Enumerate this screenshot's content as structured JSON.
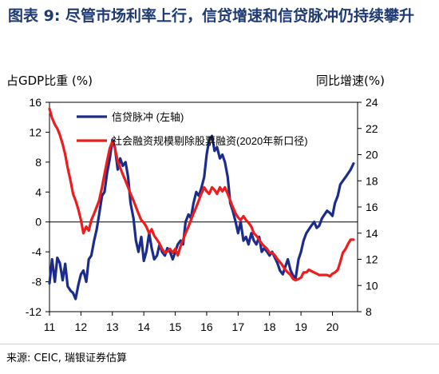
{
  "title": "图表 9: 尽管市场利率上行，信贷增速和信贷脉冲仍持续攀升",
  "source": "来源: CEIC, 瑞银证券估算",
  "chart_data": {
    "type": "line",
    "left_axis_label": "占GDP比重 (%)",
    "right_axis_label": "同比增速(%)",
    "x_ticks": [
      "11",
      "12",
      "13",
      "14",
      "15",
      "16",
      "17",
      "18",
      "19",
      "20"
    ],
    "xlim": [
      2011.0,
      2020.8
    ],
    "y_left": {
      "ylim": [
        -12,
        16
      ],
      "ticks": [
        "16",
        "12",
        "8",
        "4",
        "0",
        "-4",
        "-8",
        "-12"
      ],
      "values": [
        16,
        12,
        8,
        4,
        0,
        -4,
        -8,
        -12
      ]
    },
    "y_right": {
      "ylim": [
        8,
        24
      ],
      "ticks": [
        "24",
        "22",
        "20",
        "18",
        "16",
        "14",
        "12",
        "10",
        "8"
      ],
      "values": [
        24,
        22,
        20,
        18,
        16,
        14,
        12,
        10,
        8
      ]
    },
    "legend_location": "top-left",
    "series": [
      {
        "name": "信贷脉冲 (左轴)",
        "axis": "left",
        "color": "#1c2c8c",
        "x": [
          2011.0,
          2011.08,
          2011.17,
          2011.25,
          2011.33,
          2011.42,
          2011.5,
          2011.58,
          2011.67,
          2011.75,
          2011.83,
          2011.92,
          2012.0,
          2012.08,
          2012.17,
          2012.25,
          2012.33,
          2012.42,
          2012.5,
          2012.58,
          2012.67,
          2012.75,
          2012.83,
          2012.92,
          2013.0,
          2013.08,
          2013.17,
          2013.25,
          2013.33,
          2013.42,
          2013.5,
          2013.58,
          2013.67,
          2013.75,
          2013.83,
          2013.92,
          2014.0,
          2014.08,
          2014.17,
          2014.25,
          2014.33,
          2014.42,
          2014.5,
          2014.58,
          2014.67,
          2014.75,
          2014.83,
          2014.92,
          2015.0,
          2015.08,
          2015.17,
          2015.25,
          2015.33,
          2015.42,
          2015.5,
          2015.58,
          2015.67,
          2015.75,
          2015.83,
          2015.92,
          2016.0,
          2016.08,
          2016.17,
          2016.25,
          2016.33,
          2016.42,
          2016.5,
          2016.58,
          2016.67,
          2016.75,
          2016.83,
          2016.92,
          2017.0,
          2017.08,
          2017.17,
          2017.25,
          2017.33,
          2017.42,
          2017.5,
          2017.58,
          2017.67,
          2017.75,
          2017.83,
          2017.92,
          2018.0,
          2018.08,
          2018.17,
          2018.25,
          2018.33,
          2018.42,
          2018.5,
          2018.58,
          2018.67,
          2018.75,
          2018.83,
          2018.92,
          2019.0,
          2019.08,
          2019.17,
          2019.25,
          2019.33,
          2019.42,
          2019.5,
          2019.58,
          2019.67,
          2019.75,
          2019.83,
          2019.92,
          2020.0,
          2020.08,
          2020.17,
          2020.25,
          2020.33,
          2020.42,
          2020.5,
          2020.58,
          2020.67
        ],
        "values": [
          -8.2,
          -5.0,
          -8.0,
          -4.8,
          -5.5,
          -7.8,
          -5.6,
          -8.6,
          -9.2,
          -9.5,
          -10.3,
          -8.4,
          -7.0,
          -6.5,
          -8.0,
          -5.0,
          -4.5,
          -2.5,
          -1.0,
          1.0,
          3.5,
          4.0,
          6.5,
          8.5,
          11.0,
          10.0,
          7.0,
          8.5,
          7.5,
          8.0,
          6.0,
          2.5,
          0.5,
          -2.5,
          -4.0,
          -2.0,
          -5.2,
          -4.0,
          -1.5,
          -3.5,
          -5.0,
          -4.5,
          -3.0,
          -4.0,
          -4.5,
          -3.5,
          -4.0,
          -5.0,
          -4.0,
          -3.0,
          -2.5,
          -3.0,
          0.0,
          1.0,
          0.5,
          2.5,
          4.0,
          3.5,
          4.5,
          6.0,
          9.0,
          11.0,
          11.5,
          9.5,
          10.0,
          8.5,
          9.0,
          8.0,
          6.0,
          2.5,
          1.5,
          0.0,
          -1.5,
          0.0,
          -2.5,
          -2.0,
          -3.0,
          -1.5,
          -2.5,
          -3.0,
          -2.0,
          -4.0,
          -3.5,
          -4.0,
          -4.5,
          -4.0,
          -4.8,
          -5.5,
          -6.5,
          -7.0,
          -6.0,
          -5.0,
          -6.5,
          -7.2,
          -7.5,
          -5.0,
          -4.0,
          -2.5,
          -1.5,
          -1.0,
          -0.5,
          0.0,
          -0.8,
          -0.5,
          0.5,
          1.0,
          1.5,
          1.2,
          0.8,
          2.5,
          3.5,
          5.0,
          5.5,
          6.0,
          6.5,
          7.0,
          7.8
        ]
      },
      {
        "name": "社会融资规模剔除股票融资(2020年新口径)",
        "axis": "right",
        "color": "#ee1c1c",
        "x": [
          2011.0,
          2011.08,
          2011.17,
          2011.25,
          2011.33,
          2011.42,
          2011.5,
          2011.58,
          2011.67,
          2011.75,
          2011.83,
          2011.92,
          2012.0,
          2012.08,
          2012.17,
          2012.25,
          2012.33,
          2012.42,
          2012.5,
          2012.58,
          2012.67,
          2012.75,
          2012.83,
          2012.92,
          2013.0,
          2013.08,
          2013.17,
          2013.25,
          2013.33,
          2013.42,
          2013.5,
          2013.58,
          2013.67,
          2013.75,
          2013.83,
          2013.92,
          2014.0,
          2014.08,
          2014.17,
          2014.25,
          2014.33,
          2014.42,
          2014.5,
          2014.58,
          2014.67,
          2014.75,
          2014.83,
          2014.92,
          2015.0,
          2015.08,
          2015.17,
          2015.25,
          2015.33,
          2015.42,
          2015.5,
          2015.58,
          2015.67,
          2015.75,
          2015.83,
          2015.92,
          2016.0,
          2016.08,
          2016.17,
          2016.25,
          2016.33,
          2016.42,
          2016.5,
          2016.58,
          2016.67,
          2016.75,
          2016.83,
          2016.92,
          2017.0,
          2017.08,
          2017.17,
          2017.25,
          2017.33,
          2017.42,
          2017.5,
          2017.58,
          2017.67,
          2017.75,
          2017.83,
          2017.92,
          2018.0,
          2018.08,
          2018.17,
          2018.25,
          2018.33,
          2018.42,
          2018.5,
          2018.58,
          2018.67,
          2018.75,
          2018.83,
          2018.92,
          2019.0,
          2019.08,
          2019.17,
          2019.25,
          2019.33,
          2019.42,
          2019.5,
          2019.58,
          2019.67,
          2019.75,
          2019.83,
          2019.92,
          2020.0,
          2020.08,
          2020.17,
          2020.25,
          2020.33,
          2020.42,
          2020.5,
          2020.58,
          2020.67
        ],
        "values": [
          23.5,
          22.8,
          22.3,
          22.0,
          21.5,
          20.8,
          20.0,
          19.0,
          18.0,
          17.0,
          16.5,
          15.8,
          15.0,
          14.0,
          14.5,
          14.2,
          15.0,
          15.5,
          16.0,
          16.5,
          17.5,
          18.5,
          19.5,
          20.5,
          21.0,
          20.5,
          19.5,
          19.0,
          18.5,
          18.0,
          17.5,
          17.0,
          16.5,
          16.0,
          15.5,
          15.0,
          14.8,
          14.5,
          14.0,
          14.3,
          13.8,
          13.5,
          13.2,
          12.8,
          12.5,
          12.6,
          12.8,
          12.5,
          12.8,
          12.3,
          13.0,
          13.5,
          14.0,
          14.5,
          15.0,
          15.5,
          16.0,
          16.5,
          17.0,
          17.5,
          17.2,
          17.0,
          17.5,
          17.3,
          17.0,
          17.5,
          17.2,
          17.5,
          17.0,
          16.5,
          16.0,
          15.5,
          15.2,
          15.0,
          15.3,
          15.0,
          14.8,
          14.5,
          14.0,
          13.8,
          13.5,
          13.2,
          13.0,
          12.8,
          12.5,
          12.5,
          12.3,
          12.0,
          11.8,
          11.5,
          11.2,
          11.0,
          10.8,
          10.5,
          10.4,
          10.5,
          10.6,
          11.0,
          11.0,
          11.2,
          11.1,
          11.0,
          10.9,
          10.8,
          10.8,
          10.8,
          10.8,
          10.7,
          10.9,
          11.0,
          11.2,
          11.8,
          12.5,
          12.8,
          13.2,
          13.5,
          13.5
        ]
      }
    ]
  }
}
